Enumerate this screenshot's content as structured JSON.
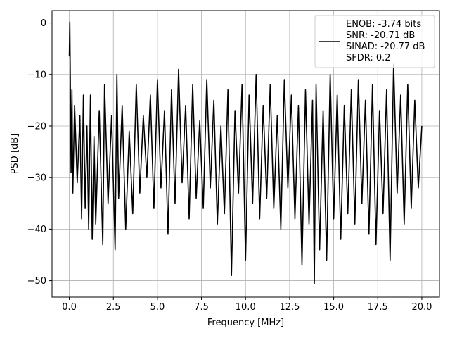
{
  "chart_data": {
    "type": "line",
    "title": "",
    "xlabel": "Frequency [MHz]",
    "ylabel": "PSD [dB]",
    "xlim": [
      -0.98,
      21.0
    ],
    "ylim": [
      -53.2,
      2.4
    ],
    "x_ticks": [
      0.0,
      2.5,
      5.0,
      7.5,
      10.0,
      12.5,
      15.0,
      17.5,
      20.0
    ],
    "x_tick_labels": [
      "0.0",
      "2.5",
      "5.0",
      "7.5",
      "10.0",
      "12.5",
      "15.0",
      "17.5",
      "20.0"
    ],
    "y_ticks": [
      0,
      -10,
      -20,
      -30,
      -40,
      -50
    ],
    "y_tick_labels": [
      "0",
      "−10",
      "−20",
      "−30",
      "−40",
      "−50"
    ],
    "grid": true,
    "legend_position": "top-right",
    "line_color": "#000000",
    "series": [
      {
        "name": "ENOB: -3.74 bits\nSNR: -20.71 dB\nSINAD: -20.77 dB\nSFDR: 0.2",
        "legend_lines": [
          "ENOB: -3.74 bits",
          "SNR: -20.71 dB",
          "SINAD: -20.77 dB",
          "SFDR: 0.2"
        ],
        "x": [
          0.0,
          0.03,
          0.06,
          0.1,
          0.15,
          0.2,
          0.3,
          0.45,
          0.6,
          0.7,
          0.8,
          0.9,
          1.0,
          1.1,
          1.2,
          1.3,
          1.4,
          1.5,
          1.7,
          1.9,
          2.0,
          2.2,
          2.4,
          2.6,
          2.7,
          2.8,
          3.0,
          3.2,
          3.4,
          3.6,
          3.8,
          4.0,
          4.2,
          4.4,
          4.6,
          4.8,
          5.0,
          5.2,
          5.4,
          5.6,
          5.8,
          6.0,
          6.2,
          6.4,
          6.6,
          6.8,
          7.0,
          7.2,
          7.4,
          7.6,
          7.8,
          8.0,
          8.2,
          8.4,
          8.6,
          8.8,
          9.0,
          9.2,
          9.4,
          9.6,
          9.8,
          10.0,
          10.2,
          10.4,
          10.6,
          10.8,
          11.0,
          11.2,
          11.4,
          11.6,
          11.8,
          12.0,
          12.2,
          12.4,
          12.6,
          12.8,
          13.0,
          13.2,
          13.4,
          13.6,
          13.8,
          13.9,
          14.0,
          14.2,
          14.4,
          14.6,
          14.8,
          15.0,
          15.2,
          15.4,
          15.6,
          15.8,
          16.0,
          16.2,
          16.4,
          16.6,
          16.8,
          17.0,
          17.2,
          17.4,
          17.6,
          17.8,
          18.0,
          18.2,
          18.4,
          18.6,
          18.8,
          19.0,
          19.2,
          19.4,
          19.6,
          19.8,
          20.0
        ],
        "y": [
          -6.5,
          0.2,
          -12,
          -29,
          -13,
          -33,
          -16,
          -31,
          -18,
          -38,
          -14,
          -36,
          -20,
          -40,
          -14,
          -42,
          -22,
          -39,
          -17,
          -43,
          -12,
          -35,
          -18,
          -44,
          -10,
          -34,
          -16,
          -40,
          -21,
          -37,
          -12,
          -33,
          -18,
          -30,
          -14,
          -36,
          -11,
          -32,
          -17,
          -41,
          -13,
          -35,
          -9,
          -31,
          -16,
          -38,
          -12,
          -34,
          -19,
          -36,
          -11,
          -32,
          -15,
          -39,
          -20,
          -37,
          -13,
          -49,
          -17,
          -33,
          -12,
          -46,
          -14,
          -35,
          -10,
          -38,
          -16,
          -34,
          -12,
          -36,
          -18,
          -40,
          -11,
          -32,
          -14,
          -38,
          -16,
          -47,
          -13,
          -39,
          -15,
          -50.6,
          -12,
          -44,
          -17,
          -46,
          -10,
          -38,
          -14,
          -42,
          -16,
          -37,
          -13,
          -39,
          -11,
          -35,
          -15,
          -41,
          -12,
          -43,
          -17,
          -37,
          -13,
          -46,
          -8,
          -33,
          -14,
          -39,
          -12,
          -36,
          -15,
          -32,
          -20
        ]
      }
    ]
  }
}
